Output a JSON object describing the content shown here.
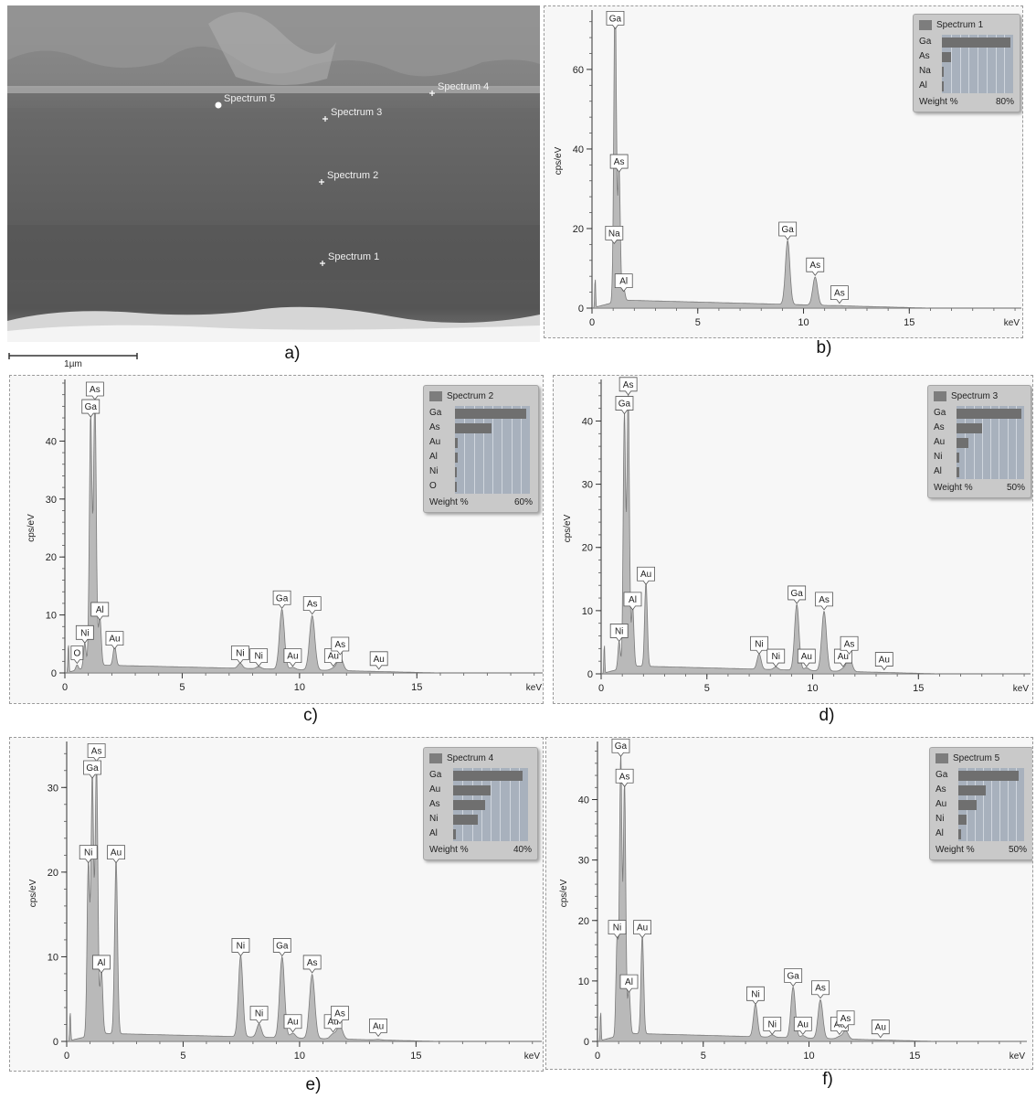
{
  "captions": {
    "a": "a)",
    "b": "b)",
    "c": "c)",
    "d": "d)",
    "e": "e)",
    "f": "f)"
  },
  "sem": {
    "scalebar_label": "1µm",
    "markers": [
      "Spectrum 5",
      "Spectrum 4",
      "Spectrum 3",
      "Spectrum 2",
      "Spectrum 1"
    ]
  },
  "colors": {
    "spectrum_fill": "#b9b9b9",
    "spectrum_line": "#7a7a7a",
    "legend_bar": "#6f6f6f",
    "legend_bg": "#c9c9c9"
  },
  "chart_data": [
    {
      "id": "b",
      "type": "area",
      "title": "Spectrum 1",
      "ylabel": "cps/eV",
      "xunit": "keV",
      "xlim": [
        0,
        20.3
      ],
      "ylim": [
        0,
        74
      ],
      "xticks": [
        0,
        5,
        10,
        15
      ],
      "yticks": [
        0,
        20,
        40,
        60
      ],
      "peaks": [
        {
          "label": "Ga",
          "x": 1.1,
          "y": 70
        },
        {
          "label": "As",
          "x": 1.28,
          "y": 34
        },
        {
          "label": "Na",
          "x": 1.05,
          "y": 16
        },
        {
          "label": "Al",
          "x": 1.5,
          "y": 4
        },
        {
          "label": "Ga",
          "x": 9.25,
          "y": 17
        },
        {
          "label": "As",
          "x": 10.55,
          "y": 8
        },
        {
          "label": "As",
          "x": 11.7,
          "y": 1
        }
      ],
      "legend": {
        "elements": [
          "Ga",
          "As",
          "Na",
          "Al"
        ],
        "weight_percent": [
          77,
          10,
          0,
          0
        ],
        "footer": "Weight %",
        "scale_max": "80%"
      }
    },
    {
      "id": "c",
      "type": "area",
      "title": "Spectrum 2",
      "ylabel": "cps/eV",
      "xunit": "keV",
      "xlim": [
        0,
        20.4
      ],
      "ylim": [
        0,
        50
      ],
      "xticks": [
        0,
        5,
        10,
        15
      ],
      "yticks": [
        0,
        10,
        20,
        30,
        40
      ],
      "peaks": [
        {
          "label": "As",
          "x": 1.28,
          "y": 47
        },
        {
          "label": "Ga",
          "x": 1.1,
          "y": 44
        },
        {
          "label": "Al",
          "x": 1.49,
          "y": 9
        },
        {
          "label": "Ni",
          "x": 0.85,
          "y": 5
        },
        {
          "label": "O",
          "x": 0.52,
          "y": 1.5
        },
        {
          "label": "Au",
          "x": 2.12,
          "y": 4
        },
        {
          "label": "Ni",
          "x": 7.47,
          "y": 1.5
        },
        {
          "label": "Ni",
          "x": 8.26,
          "y": 1
        },
        {
          "label": "Ga",
          "x": 9.25,
          "y": 11
        },
        {
          "label": "As",
          "x": 10.54,
          "y": 10
        },
        {
          "label": "Au",
          "x": 9.71,
          "y": 1
        },
        {
          "label": "Au",
          "x": 11.44,
          "y": 1
        },
        {
          "label": "As",
          "x": 11.73,
          "y": 3
        },
        {
          "label": "Au",
          "x": 13.38,
          "y": 0.5
        }
      ],
      "legend": {
        "elements": [
          "Ga",
          "As",
          "Au",
          "Al",
          "Ni",
          "O"
        ],
        "weight_percent": [
          57,
          29,
          2,
          2,
          0,
          0
        ],
        "footer": "Weight %",
        "scale_max": "60%"
      }
    },
    {
      "id": "d",
      "type": "area",
      "title": "Spectrum 3",
      "ylabel": "cps/eV",
      "xunit": "keV",
      "xlim": [
        0,
        20.3
      ],
      "ylim": [
        0,
        46
      ],
      "xticks": [
        0,
        5,
        10,
        15
      ],
      "yticks": [
        0,
        10,
        20,
        30,
        40
      ],
      "peaks": [
        {
          "label": "As",
          "x": 1.28,
          "y": 44
        },
        {
          "label": "Ga",
          "x": 1.1,
          "y": 41
        },
        {
          "label": "Al",
          "x": 1.49,
          "y": 10
        },
        {
          "label": "Ni",
          "x": 0.85,
          "y": 5
        },
        {
          "label": "Au",
          "x": 2.12,
          "y": 14
        },
        {
          "label": "Ni",
          "x": 7.47,
          "y": 3
        },
        {
          "label": "Ni",
          "x": 8.26,
          "y": 1
        },
        {
          "label": "Ga",
          "x": 9.25,
          "y": 11
        },
        {
          "label": "As",
          "x": 10.54,
          "y": 10
        },
        {
          "label": "Au",
          "x": 9.71,
          "y": 1
        },
        {
          "label": "Au",
          "x": 11.44,
          "y": 1
        },
        {
          "label": "As",
          "x": 11.73,
          "y": 3
        },
        {
          "label": "Au",
          "x": 13.38,
          "y": 0.5
        }
      ],
      "legend": {
        "elements": [
          "Ga",
          "As",
          "Au",
          "Ni",
          "Al"
        ],
        "weight_percent": [
          48,
          19,
          9,
          1,
          1
        ],
        "footer": "Weight %",
        "scale_max": "50%"
      }
    },
    {
      "id": "e",
      "type": "area",
      "title": "Spectrum 4",
      "ylabel": "cps/eV",
      "xunit": "keV",
      "xlim": [
        0,
        20.4
      ],
      "ylim": [
        0,
        35
      ],
      "xticks": [
        0,
        5,
        10,
        15
      ],
      "yticks": [
        0,
        10,
        20,
        30
      ],
      "peaks": [
        {
          "label": "As",
          "x": 1.28,
          "y": 33
        },
        {
          "label": "Ga",
          "x": 1.1,
          "y": 31
        },
        {
          "label": "Ni",
          "x": 0.93,
          "y": 21
        },
        {
          "label": "Al",
          "x": 1.49,
          "y": 8
        },
        {
          "label": "Au",
          "x": 2.12,
          "y": 21
        },
        {
          "label": "Ni",
          "x": 7.47,
          "y": 10
        },
        {
          "label": "Ni",
          "x": 8.26,
          "y": 2
        },
        {
          "label": "Ga",
          "x": 9.25,
          "y": 10
        },
        {
          "label": "As",
          "x": 10.54,
          "y": 8
        },
        {
          "label": "Au",
          "x": 9.71,
          "y": 1
        },
        {
          "label": "Au",
          "x": 11.44,
          "y": 1
        },
        {
          "label": "As",
          "x": 11.73,
          "y": 2
        },
        {
          "label": "Au",
          "x": 13.38,
          "y": 0.5
        }
      ],
      "legend": {
        "elements": [
          "Ga",
          "Au",
          "As",
          "Ni",
          "Al"
        ],
        "weight_percent": [
          37,
          20,
          17,
          13,
          1
        ],
        "footer": "Weight %",
        "scale_max": "40%"
      }
    },
    {
      "id": "f",
      "type": "area",
      "title": "Spectrum 5",
      "ylabel": "cps/eV",
      "xunit": "keV",
      "xlim": [
        0,
        20.3
      ],
      "ylim": [
        0,
        49
      ],
      "xticks": [
        0,
        5,
        10,
        15
      ],
      "yticks": [
        0,
        10,
        20,
        30,
        40
      ],
      "peaks": [
        {
          "label": "Ga",
          "x": 1.1,
          "y": 47
        },
        {
          "label": "As",
          "x": 1.28,
          "y": 42
        },
        {
          "label": "Ni",
          "x": 0.93,
          "y": 17
        },
        {
          "label": "Al",
          "x": 1.49,
          "y": 8
        },
        {
          "label": "Au",
          "x": 2.12,
          "y": 17
        },
        {
          "label": "Ni",
          "x": 7.47,
          "y": 6
        },
        {
          "label": "Ni",
          "x": 8.26,
          "y": 1
        },
        {
          "label": "Ga",
          "x": 9.25,
          "y": 9
        },
        {
          "label": "As",
          "x": 10.54,
          "y": 7
        },
        {
          "label": "Au",
          "x": 9.71,
          "y": 1
        },
        {
          "label": "Au",
          "x": 11.44,
          "y": 1
        },
        {
          "label": "As",
          "x": 11.73,
          "y": 2
        },
        {
          "label": "Au",
          "x": 13.38,
          "y": 0.5
        }
      ],
      "legend": {
        "elements": [
          "Ga",
          "As",
          "Au",
          "Ni",
          "Al"
        ],
        "weight_percent": [
          46,
          21,
          14,
          6,
          1
        ],
        "footer": "Weight %",
        "scale_max": "50%"
      }
    }
  ]
}
